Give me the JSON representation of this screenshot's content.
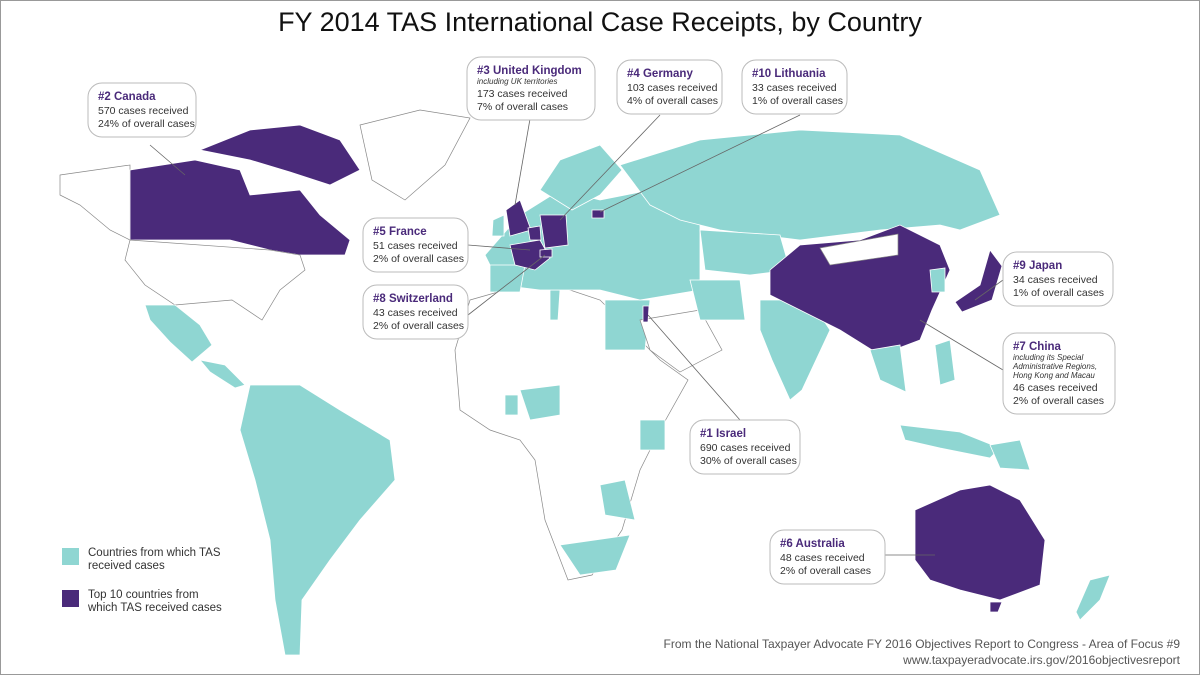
{
  "title": "FY 2014 TAS International Case Receipts, by Country",
  "callouts": [
    {
      "heading": "#2 Canada",
      "lines": [
        "570 cases received",
        "24% of overall cases"
      ]
    },
    {
      "heading": "#3 United Kingdom",
      "note": [
        "including UK territories"
      ],
      "lines": [
        "173 cases received",
        "7% of overall cases"
      ]
    },
    {
      "heading": "#4 Germany",
      "lines": [
        "103 cases received",
        "4% of overall cases"
      ]
    },
    {
      "heading": "#10 Lithuania",
      "lines": [
        "33 cases received",
        "1% of overall cases"
      ]
    },
    {
      "heading": "#5 France",
      "lines": [
        "51 cases received",
        "2% of overall cases"
      ]
    },
    {
      "heading": "#8 Switzerland",
      "lines": [
        "43 cases received",
        "2% of overall cases"
      ]
    },
    {
      "heading": "#9 Japan",
      "lines": [
        "34 cases received",
        "1% of overall cases"
      ]
    },
    {
      "heading": "#7 China",
      "note": [
        "including its Special",
        "Administrative Regions,",
        "Hong Kong and Macau"
      ],
      "lines": [
        "46 cases received",
        "2% of overall cases"
      ]
    },
    {
      "heading": "#1 Israel",
      "lines": [
        "690 cases received",
        "30% of overall cases"
      ]
    },
    {
      "heading": "#6 Australia",
      "lines": [
        "48 cases received",
        "2% of overall cases"
      ]
    }
  ],
  "legend": [
    {
      "lines": [
        "Countries from which TAS",
        "received cases"
      ]
    },
    {
      "lines": [
        "Top 10 countries from",
        "which TAS received cases"
      ]
    }
  ],
  "source": [
    "From the National Taxpayer Advocate FY 2016 Objectives Report to Congress - Area of Focus #9",
    "www.taxpayeradvocate.irs.gov/2016objectivesreport"
  ]
}
